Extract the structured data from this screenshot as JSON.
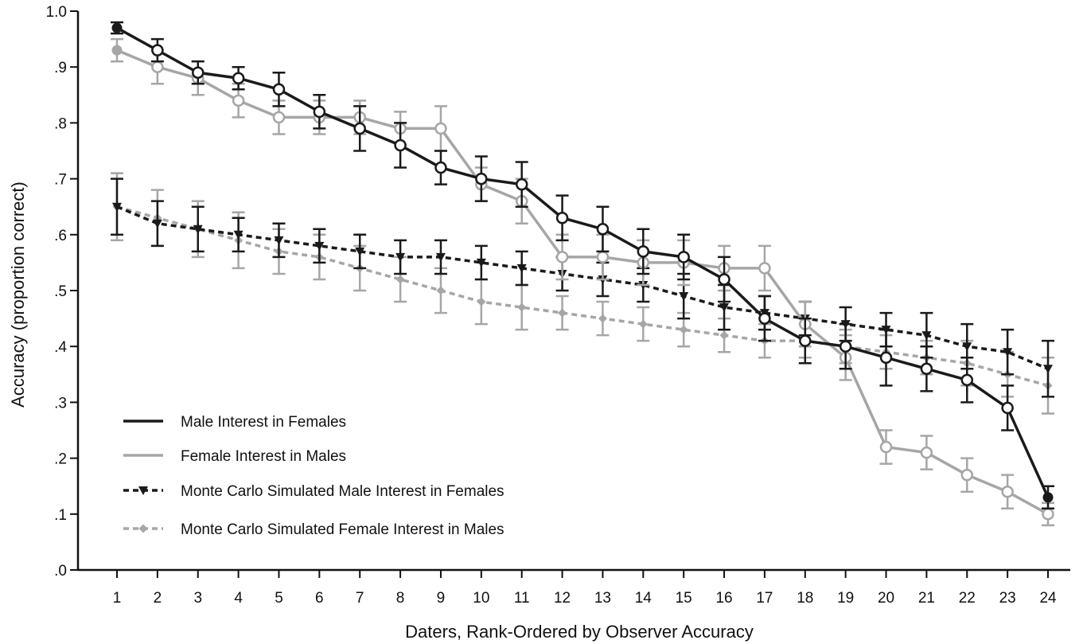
{
  "chart_data": {
    "type": "line",
    "title": "",
    "xlabel": "Daters, Rank-Ordered by Observer Accuracy",
    "ylabel": "Accuracy (proportion correct)",
    "x": [
      1,
      2,
      3,
      4,
      5,
      6,
      7,
      8,
      9,
      10,
      11,
      12,
      13,
      14,
      15,
      16,
      17,
      18,
      19,
      20,
      21,
      22,
      23,
      24
    ],
    "x_tick_labels": [
      "1",
      "2",
      "3",
      "4",
      "5",
      "6",
      "7",
      "8",
      "9",
      "10",
      "11",
      "12",
      "13",
      "14",
      "15",
      "16",
      "17",
      "18",
      "19",
      "20",
      "21",
      "22",
      "23",
      "24"
    ],
    "y_tick_values": [
      0,
      0.1,
      0.2,
      0.3,
      0.4,
      0.5,
      0.6,
      0.7,
      0.8,
      0.9,
      1.0
    ],
    "y_tick_labels": [
      ".0",
      ".1",
      ".2",
      ".3",
      ".4",
      ".5",
      ".6",
      ".7",
      ".8",
      ".9",
      "1.0"
    ],
    "xlim": [
      0.5,
      24.5
    ],
    "ylim": [
      0,
      1.0
    ],
    "grid": false,
    "legend_position": "bottom-left",
    "series": [
      {
        "name": "Male Interest in Females",
        "color": "#1a1a1a",
        "line_style": "solid",
        "marker": "open-circle",
        "values": [
          0.97,
          0.93,
          0.89,
          0.88,
          0.86,
          0.82,
          0.79,
          0.76,
          0.72,
          0.7,
          0.69,
          0.63,
          0.61,
          0.57,
          0.56,
          0.52,
          0.45,
          0.41,
          0.4,
          0.38,
          0.36,
          0.34,
          0.29,
          0.13
        ],
        "errors": [
          0.01,
          0.02,
          0.02,
          0.02,
          0.03,
          0.03,
          0.04,
          0.04,
          0.03,
          0.04,
          0.04,
          0.04,
          0.04,
          0.04,
          0.04,
          0.04,
          0.04,
          0.04,
          0.04,
          0.05,
          0.04,
          0.04,
          0.04,
          0.02
        ]
      },
      {
        "name": "Female Interest in Males",
        "color": "#a6a6a6",
        "line_style": "solid",
        "marker": "open-circle",
        "values": [
          0.93,
          0.9,
          0.88,
          0.84,
          0.81,
          0.81,
          0.81,
          0.79,
          0.79,
          0.69,
          0.66,
          0.56,
          0.56,
          0.55,
          0.55,
          0.54,
          0.54,
          0.44,
          0.38,
          0.22,
          0.21,
          0.17,
          0.14,
          0.1
        ],
        "errors": [
          0.02,
          0.03,
          0.03,
          0.03,
          0.03,
          0.03,
          0.03,
          0.03,
          0.04,
          0.03,
          0.04,
          0.04,
          0.04,
          0.04,
          0.04,
          0.04,
          0.04,
          0.04,
          0.04,
          0.03,
          0.03,
          0.03,
          0.03,
          0.02
        ]
      },
      {
        "name": "Monte Carlo Simulated Male Interest in Females",
        "color": "#1a1a1a",
        "line_style": "dashed",
        "marker": "filled-triangle-down",
        "values": [
          0.65,
          0.62,
          0.61,
          0.6,
          0.59,
          0.58,
          0.57,
          0.56,
          0.56,
          0.55,
          0.54,
          0.53,
          0.52,
          0.51,
          0.49,
          0.47,
          0.46,
          0.45,
          0.44,
          0.43,
          0.42,
          0.4,
          0.39,
          0.36
        ],
        "errors": [
          0.05,
          0.04,
          0.04,
          0.03,
          0.03,
          0.03,
          0.03,
          0.03,
          0.03,
          0.03,
          0.03,
          0.03,
          0.03,
          0.03,
          0.04,
          0.04,
          0.03,
          0.03,
          0.03,
          0.03,
          0.04,
          0.04,
          0.04,
          0.05
        ]
      },
      {
        "name": "Monte Carlo Simulated Female Interest in Males",
        "color": "#a6a6a6",
        "line_style": "dashed",
        "marker": "filled-diamond",
        "values": [
          0.65,
          0.63,
          0.61,
          0.59,
          0.57,
          0.56,
          0.54,
          0.52,
          0.5,
          0.48,
          0.47,
          0.46,
          0.45,
          0.44,
          0.43,
          0.42,
          0.41,
          0.41,
          0.4,
          0.39,
          0.38,
          0.37,
          0.35,
          0.33
        ],
        "errors": [
          0.06,
          0.05,
          0.05,
          0.05,
          0.04,
          0.04,
          0.04,
          0.04,
          0.04,
          0.04,
          0.04,
          0.03,
          0.03,
          0.03,
          0.03,
          0.03,
          0.03,
          0.03,
          0.03,
          0.03,
          0.03,
          0.04,
          0.04,
          0.05
        ]
      }
    ]
  }
}
